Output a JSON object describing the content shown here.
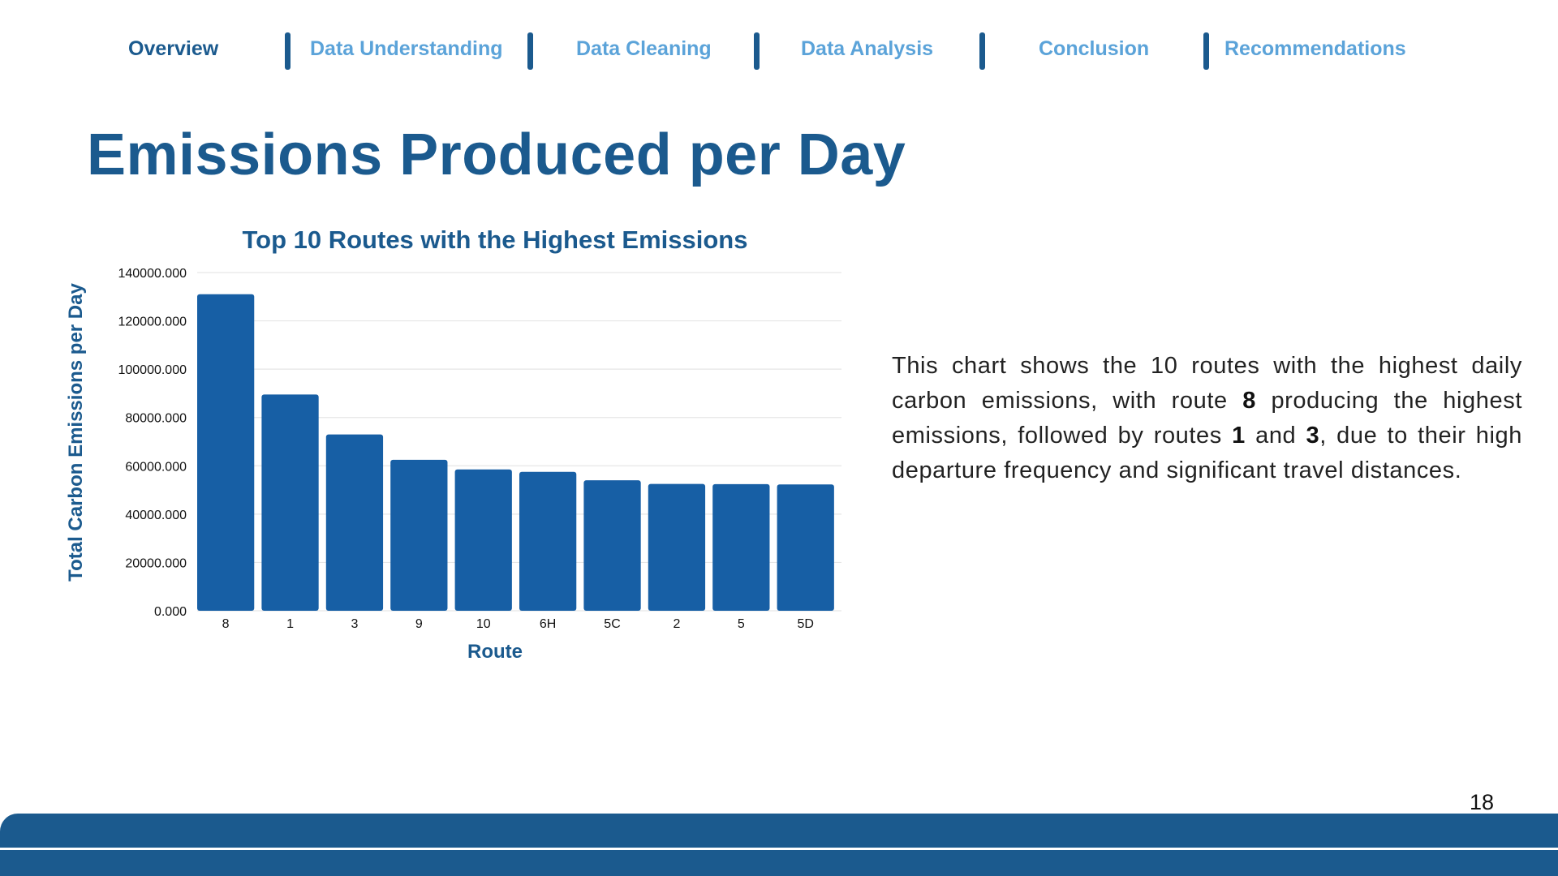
{
  "nav": {
    "items": [
      {
        "label": "Overview",
        "active": true
      },
      {
        "label": "Data Understanding",
        "active": false
      },
      {
        "label": "Data Cleaning",
        "active": false
      },
      {
        "label": "Data Analysis",
        "active": false
      },
      {
        "label": "Conclusion",
        "active": false
      },
      {
        "label": "Recommendations",
        "active": false
      }
    ]
  },
  "page": {
    "title": "Emissions Produced per Day",
    "number": "18"
  },
  "description": {
    "part1": "This chart shows the 10 routes with the highest daily carbon emissions, with route ",
    "bold1": "8",
    "part2": " producing the highest emissions, followed by routes ",
    "bold2": "1",
    "part3": " and ",
    "bold3": "3",
    "part4": ", due to their high departure frequency and significant travel distances."
  },
  "colors": {
    "primary": "#1b5a8e",
    "bar": "#175fa5",
    "nav_inactive": "#5ba3d9"
  },
  "chart_data": {
    "type": "bar",
    "title": "Top 10 Routes with the Highest Emissions",
    "xlabel": "Route",
    "ylabel": "Total Carbon Emissions per Day",
    "categories": [
      "8",
      "1",
      "3",
      "9",
      "10",
      "6H",
      "5C",
      "2",
      "5",
      "5D"
    ],
    "values": [
      131000,
      89500,
      73000,
      62500,
      58500,
      57500,
      54000,
      52500,
      52400,
      52300
    ],
    "ylim": [
      0,
      140000
    ],
    "yticks": [
      0,
      20000,
      40000,
      60000,
      80000,
      100000,
      120000,
      140000
    ],
    "ytick_labels": [
      "0.000",
      "20000.000",
      "40000.000",
      "60000.000",
      "80000.000",
      "100000.000",
      "120000.000",
      "140000.000"
    ],
    "grid": true,
    "legend": "none"
  }
}
